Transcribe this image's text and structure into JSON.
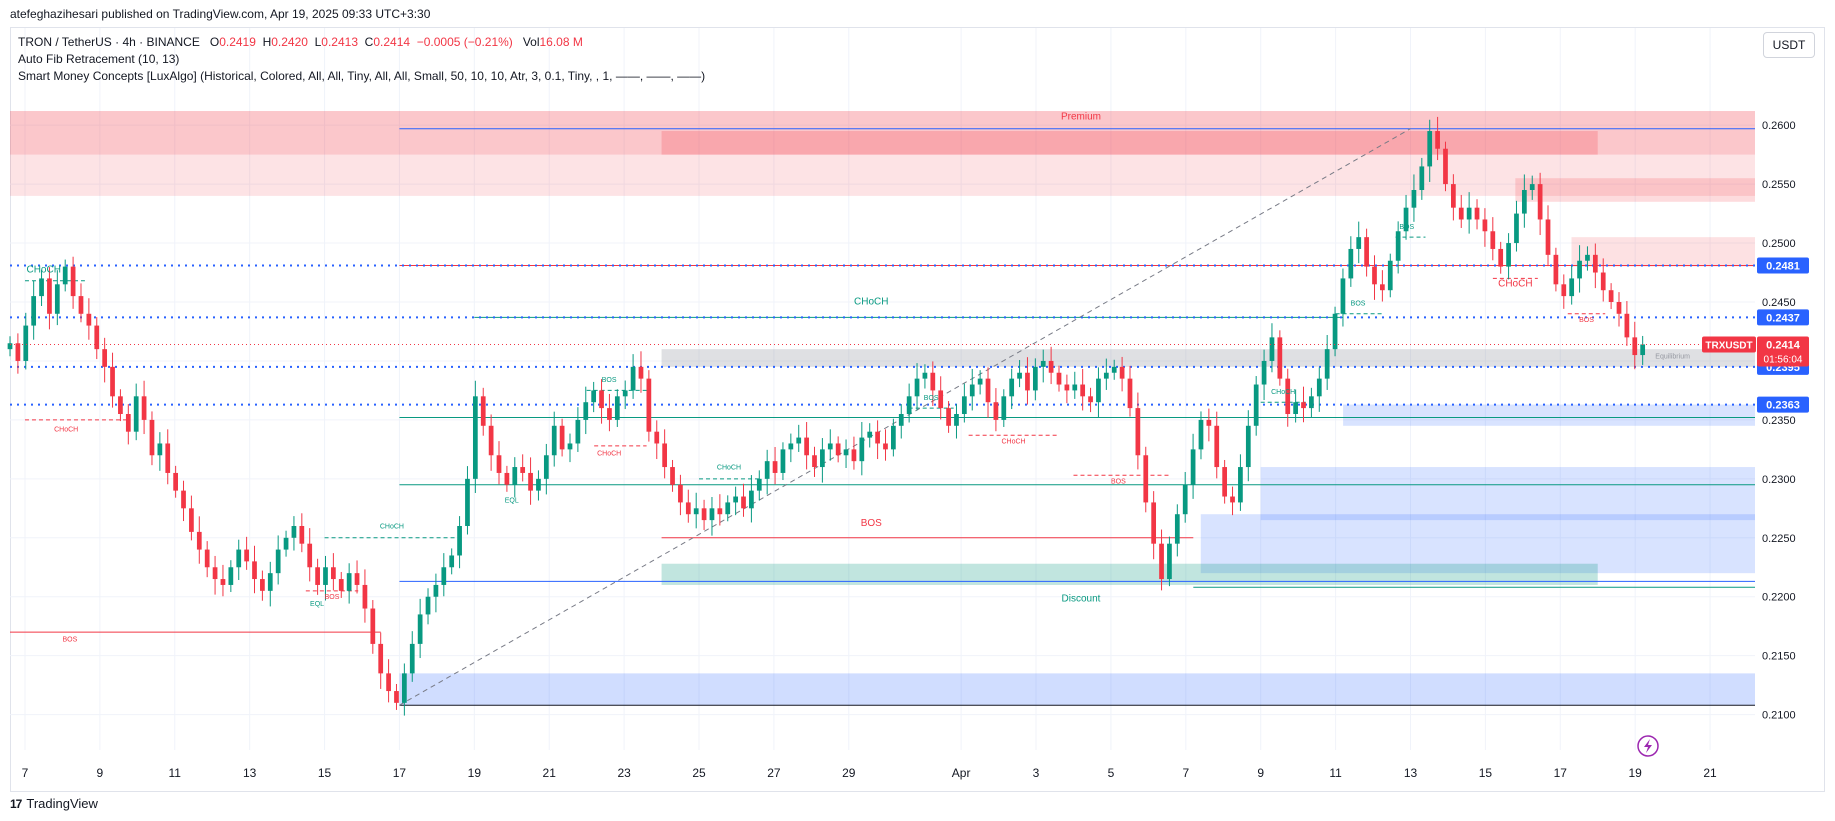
{
  "header": {
    "publish_line": "atefeghazihesari published on TradingView.com, Apr 19, 2025 09:33 UTC+3:30"
  },
  "legend": {
    "symbol": "TRON / TetherUS · 4h · BINANCE",
    "o_key": "O",
    "o_val": "0.2419",
    "h_key": "H",
    "h_val": "0.2420",
    "l_key": "L",
    "l_val": "0.2413",
    "c_key": "C",
    "c_val": "0.2414",
    "change": "−0.0005 (−0.21%)",
    "vol_key": "Vol",
    "vol_val": "16.08",
    "vol_unit": "M",
    "indicator1": "Auto Fib Retracement (10, 13)",
    "indicator2": "Smart Money Concepts [LuxAlgo] (Historical, Colored, All, All, Tiny, All, All, Small, 50, 10, 10, Atr, 3, 0.1, Tiny, , 1, ——, ——, ——)"
  },
  "currency_button": "USDT",
  "footer": {
    "brand": "TradingView",
    "logo_glyph": "17"
  },
  "colors": {
    "up": "#089981",
    "down": "#f23645",
    "blue": "#2962ff",
    "axis_text": "#131722",
    "grid": "#f0f3fa"
  },
  "chart_data": {
    "type": "candlestick",
    "symbol": "TRXUSDT",
    "timeframe": "4h",
    "ylim": [
      0.207,
      0.264
    ],
    "y_ticks": [
      "0.2100",
      "0.2150",
      "0.2200",
      "0.2250",
      "0.2300",
      "0.2350",
      "0.2400",
      "0.2450",
      "0.2500",
      "0.2550",
      "0.2600"
    ],
    "x_ticks": [
      {
        "label": "7",
        "day": 7
      },
      {
        "label": "9",
        "day": 9
      },
      {
        "label": "11",
        "day": 11
      },
      {
        "label": "13",
        "day": 13
      },
      {
        "label": "15",
        "day": 15
      },
      {
        "label": "17",
        "day": 17
      },
      {
        "label": "19",
        "day": 19
      },
      {
        "label": "21",
        "day": 21
      },
      {
        "label": "23",
        "day": 23
      },
      {
        "label": "25",
        "day": 25
      },
      {
        "label": "27",
        "day": 27
      },
      {
        "label": "29",
        "day": 29
      },
      {
        "label": "Apr",
        "day": 32
      },
      {
        "label": "3",
        "day": 34
      },
      {
        "label": "5",
        "day": 36
      },
      {
        "label": "7",
        "day": 38
      },
      {
        "label": "9",
        "day": 40
      },
      {
        "label": "11",
        "day": 42
      },
      {
        "label": "13",
        "day": 44
      },
      {
        "label": "15",
        "day": 46
      },
      {
        "label": "17",
        "day": 48
      },
      {
        "label": "19",
        "day": 50
      },
      {
        "label": "21",
        "day": 52
      }
    ],
    "x_range_days": [
      6.6,
      53.2
    ],
    "closes": [
      0.2415,
      0.24,
      0.243,
      0.2455,
      0.247,
      0.244,
      0.2465,
      0.248,
      0.2455,
      0.244,
      0.243,
      0.241,
      0.2395,
      0.237,
      0.2355,
      0.234,
      0.237,
      0.235,
      0.232,
      0.233,
      0.2305,
      0.229,
      0.2275,
      0.2255,
      0.224,
      0.2225,
      0.2215,
      0.221,
      0.2225,
      0.224,
      0.223,
      0.2215,
      0.2205,
      0.222,
      0.224,
      0.225,
      0.226,
      0.2245,
      0.2225,
      0.221,
      0.2225,
      0.2215,
      0.2205,
      0.222,
      0.221,
      0.219,
      0.216,
      0.2135,
      0.212,
      0.211,
      0.2135,
      0.216,
      0.2185,
      0.22,
      0.221,
      0.2225,
      0.2235,
      0.226,
      0.23,
      0.237,
      0.2345,
      0.232,
      0.2305,
      0.2295,
      0.231,
      0.2305,
      0.229,
      0.23,
      0.232,
      0.2345,
      0.2325,
      0.233,
      0.235,
      0.2365,
      0.2375,
      0.236,
      0.235,
      0.237,
      0.2375,
      0.2395,
      0.2385,
      0.234,
      0.233,
      0.231,
      0.2295,
      0.228,
      0.227,
      0.2275,
      0.2265,
      0.2275,
      0.227,
      0.228,
      0.2285,
      0.2275,
      0.229,
      0.23,
      0.2315,
      0.2305,
      0.2325,
      0.233,
      0.2335,
      0.232,
      0.231,
      0.2325,
      0.233,
      0.232,
      0.2325,
      0.2315,
      0.2335,
      0.234,
      0.233,
      0.2325,
      0.2345,
      0.2355,
      0.237,
      0.2385,
      0.239,
      0.2375,
      0.236,
      0.2345,
      0.2355,
      0.237,
      0.238,
      0.2385,
      0.2365,
      0.235,
      0.237,
      0.2385,
      0.239,
      0.2375,
      0.2395,
      0.24,
      0.239,
      0.238,
      0.2375,
      0.238,
      0.237,
      0.2365,
      0.2385,
      0.239,
      0.2395,
      0.2385,
      0.236,
      0.232,
      0.228,
      0.2245,
      0.2215,
      0.2245,
      0.227,
      0.2295,
      0.2325,
      0.235,
      0.2345,
      0.231,
      0.2285,
      0.228,
      0.231,
      0.2345,
      0.238,
      0.24,
      0.242,
      0.2385,
      0.2355,
      0.2365,
      0.236,
      0.237,
      0.2385,
      0.241,
      0.244,
      0.247,
      0.2495,
      0.2505,
      0.248,
      0.2465,
      0.246,
      0.2485,
      0.251,
      0.253,
      0.2545,
      0.2565,
      0.2595,
      0.258,
      0.255,
      0.253,
      0.252,
      0.253,
      0.252,
      0.251,
      0.2495,
      0.248,
      0.25,
      0.2525,
      0.2545,
      0.255,
      0.252,
      0.249,
      0.2465,
      0.2455,
      0.247,
      0.2485,
      0.249,
      0.2475,
      0.246,
      0.245,
      0.244,
      0.242,
      0.2405,
      0.2414
    ],
    "last_price": {
      "label": "TRXUSDT",
      "value": "0.2414",
      "countdown": "01:56:04",
      "y": 0.2414
    },
    "price_labels": [
      {
        "value": "0.2481",
        "y": 0.2481
      },
      {
        "value": "0.2437",
        "y": 0.2437
      },
      {
        "value": "0.2395",
        "y": 0.2395
      },
      {
        "value": "0.2363",
        "y": 0.2363
      }
    ],
    "horizontal_dotted_levels": [
      0.2481,
      0.2437,
      0.2395,
      0.2363
    ],
    "zones": [
      {
        "name": "premium-zone",
        "x0": 6.6,
        "x1": 53.2,
        "y0": 0.2575,
        "y1": 0.2612,
        "color": "#f23645",
        "opacity": 0.28
      },
      {
        "name": "premium-inner-zone",
        "x0": 24.0,
        "x1": 49.0,
        "y0": 0.2575,
        "y1": 0.2595,
        "color": "#f23645",
        "opacity": 0.22
      },
      {
        "name": "upper-supply-zone",
        "x0": 6.6,
        "x1": 53.2,
        "y0": 0.254,
        "y1": 0.2575,
        "color": "#f23645",
        "opacity": 0.14
      },
      {
        "name": "supply-zone-2",
        "x0": 46.8,
        "x1": 53.2,
        "y0": 0.2535,
        "y1": 0.2555,
        "color": "#f23645",
        "opacity": 0.18
      },
      {
        "name": "supply-zone-3",
        "x0": 48.3,
        "x1": 53.2,
        "y0": 0.248,
        "y1": 0.2505,
        "color": "#f23645",
        "opacity": 0.15
      },
      {
        "name": "equilibrium-zone",
        "x0": 24.0,
        "x1": 53.2,
        "y0": 0.2395,
        "y1": 0.241,
        "color": "#9598a1",
        "opacity": 0.3
      },
      {
        "name": "demand-zone-1",
        "x0": 42.2,
        "x1": 53.2,
        "y0": 0.2345,
        "y1": 0.2363,
        "color": "#2962ff",
        "opacity": 0.18
      },
      {
        "name": "demand-zone-2",
        "x0": 40.0,
        "x1": 53.2,
        "y0": 0.2265,
        "y1": 0.231,
        "color": "#2962ff",
        "opacity": 0.18
      },
      {
        "name": "demand-zone-3",
        "x0": 38.4,
        "x1": 53.2,
        "y0": 0.222,
        "y1": 0.227,
        "color": "#2962ff",
        "opacity": 0.18
      },
      {
        "name": "discount-zone",
        "x0": 24.0,
        "x1": 49.0,
        "y0": 0.221,
        "y1": 0.2228,
        "color": "#089981",
        "opacity": 0.25
      },
      {
        "name": "low-demand-zone",
        "x0": 17.0,
        "x1": 53.2,
        "y0": 0.2108,
        "y1": 0.2135,
        "color": "#2962ff",
        "opacity": 0.22
      }
    ],
    "hlines": [
      {
        "name": "fib-top-line",
        "x0": 17.0,
        "x1": 53.2,
        "y": 0.2597,
        "color": "#2962ff",
        "dash": false
      },
      {
        "name": "resistance-line-red",
        "x0": 17.0,
        "x1": 53.2,
        "y": 0.2481,
        "color": "#f23645",
        "dash": false
      },
      {
        "name": "choch-line",
        "x0": 19.0,
        "x1": 42.2,
        "y": 0.2437,
        "color": "#089981",
        "dash": false
      },
      {
        "name": "fib-mid-line",
        "x0": 17.0,
        "x1": 53.2,
        "y": 0.2352,
        "color": "#089981",
        "dash": false
      },
      {
        "name": "fib-lower-line",
        "x0": 17.0,
        "x1": 53.2,
        "y": 0.2295,
        "color": "#089981",
        "dash": false
      },
      {
        "name": "bos-line-mid",
        "x0": 24.0,
        "x1": 38.2,
        "y": 0.225,
        "color": "#f23645",
        "dash": false
      },
      {
        "name": "fib-low-line",
        "x0": 17.0,
        "x1": 53.2,
        "y": 0.2213,
        "color": "#2962ff",
        "dash": false
      },
      {
        "name": "bos-line-left",
        "x0": 6.6,
        "x1": 16.5,
        "y": 0.217,
        "color": "#f23645",
        "dash": false
      },
      {
        "name": "low-line",
        "x0": 17.0,
        "x1": 53.2,
        "y": 0.2108,
        "color": "#131722",
        "dash": false
      },
      {
        "name": "discount-line",
        "x0": 38.2,
        "x1": 53.2,
        "y": 0.2208,
        "color": "#089981",
        "dash": false
      },
      {
        "name": "choch-dash-left",
        "x0": 7.0,
        "x1": 9.8,
        "y": 0.235,
        "color": "#f23645",
        "dash": true
      },
      {
        "name": "choch-dash-upper-left",
        "x0": 7.0,
        "x1": 8.6,
        "y": 0.2468,
        "color": "#089981",
        "dash": true
      },
      {
        "name": "bos-dash-1",
        "x0": 14.5,
        "x1": 15.9,
        "y": 0.2205,
        "color": "#f23645",
        "dash": true
      },
      {
        "name": "choch-dash-2",
        "x0": 15.0,
        "x1": 18.6,
        "y": 0.225,
        "color": "#089981",
        "dash": true
      },
      {
        "name": "bos-dash-2",
        "x0": 22.0,
        "x1": 23.6,
        "y": 0.2375,
        "color": "#089981",
        "dash": true
      },
      {
        "name": "choch-dash-3",
        "x0": 22.2,
        "x1": 23.6,
        "y": 0.2328,
        "color": "#f23645",
        "dash": true
      },
      {
        "name": "choch-dash-4",
        "x0": 25.0,
        "x1": 26.6,
        "y": 0.23,
        "color": "#089981",
        "dash": true
      },
      {
        "name": "bos-dash-3",
        "x0": 30.6,
        "x1": 31.8,
        "y": 0.236,
        "color": "#089981",
        "dash": true
      },
      {
        "name": "choch-dash-5",
        "x0": 32.2,
        "x1": 34.6,
        "y": 0.2337,
        "color": "#f23645",
        "dash": true
      },
      {
        "name": "bos-dash-4",
        "x0": 35.0,
        "x1": 37.6,
        "y": 0.2303,
        "color": "#f23645",
        "dash": true
      },
      {
        "name": "choch-dash-6",
        "x0": 40.0,
        "x1": 41.2,
        "y": 0.2365,
        "color": "#089981",
        "dash": true
      },
      {
        "name": "bos-dash-5",
        "x0": 42.0,
        "x1": 43.3,
        "y": 0.244,
        "color": "#089981",
        "dash": true
      },
      {
        "name": "bos-dash-6",
        "x0": 43.6,
        "x1": 44.4,
        "y": 0.2505,
        "color": "#089981",
        "dash": true
      },
      {
        "name": "choch-dash-7",
        "x0": 46.2,
        "x1": 47.4,
        "y": 0.247,
        "color": "#f23645",
        "dash": true
      },
      {
        "name": "bos-dash-7",
        "x0": 48.2,
        "x1": 49.2,
        "y": 0.244,
        "color": "#f23645",
        "dash": true
      }
    ],
    "fib_diagonal": {
      "x0": 17.0,
      "y0": 0.2108,
      "x1": 44.0,
      "y1": 0.2597
    },
    "annotations": [
      {
        "text": "Premium",
        "x": 35.2,
        "y": 0.2605,
        "color": "#f23645"
      },
      {
        "text": "CHoCH",
        "x": 29.6,
        "y": 0.2448,
        "color": "#089981"
      },
      {
        "text": "BOS",
        "x": 29.6,
        "y": 0.226,
        "color": "#f23645"
      },
      {
        "text": "Discount",
        "x": 35.2,
        "y": 0.2196,
        "color": "#089981"
      },
      {
        "text": "BOS",
        "x": 8.2,
        "y": 0.2162,
        "color": "#f23645"
      },
      {
        "text": "CHoCH",
        "x": 8.1,
        "y": 0.234,
        "color": "#f23645"
      },
      {
        "text": "CHoCH",
        "x": 7.5,
        "y": 0.2475,
        "color": "#089981"
      },
      {
        "text": "EQL",
        "x": 14.8,
        "y": 0.2192,
        "color": "#089981"
      },
      {
        "text": "BOS",
        "x": 15.2,
        "y": 0.2198,
        "color": "#f23645"
      },
      {
        "text": "CHoCH",
        "x": 16.8,
        "y": 0.2258,
        "color": "#089981"
      },
      {
        "text": "EQL",
        "x": 20.0,
        "y": 0.228,
        "color": "#089981"
      },
      {
        "text": "BOS",
        "x": 22.6,
        "y": 0.2382,
        "color": "#089981"
      },
      {
        "text": "CHoCH",
        "x": 22.6,
        "y": 0.232,
        "color": "#f23645"
      },
      {
        "text": "CHoCH",
        "x": 25.8,
        "y": 0.2308,
        "color": "#089981"
      },
      {
        "text": "BOS",
        "x": 31.2,
        "y": 0.2367,
        "color": "#089981"
      },
      {
        "text": "CHoCH",
        "x": 33.4,
        "y": 0.233,
        "color": "#f23645"
      },
      {
        "text": "BOS",
        "x": 36.2,
        "y": 0.2296,
        "color": "#f23645"
      },
      {
        "text": "CHoCH",
        "x": 40.6,
        "y": 0.2372,
        "color": "#089981"
      },
      {
        "text": "BOS",
        "x": 42.6,
        "y": 0.2447,
        "color": "#089981"
      },
      {
        "text": "BOS",
        "x": 43.9,
        "y": 0.2512,
        "color": "#089981"
      },
      {
        "text": "CHoCH",
        "x": 46.8,
        "y": 0.2463,
        "color": "#f23645"
      },
      {
        "text": "BOS",
        "x": 48.7,
        "y": 0.2433,
        "color": "#f23645"
      },
      {
        "text": "Equilibrium",
        "x": 51.0,
        "y": 0.2402,
        "color": "#9598a1"
      }
    ]
  }
}
